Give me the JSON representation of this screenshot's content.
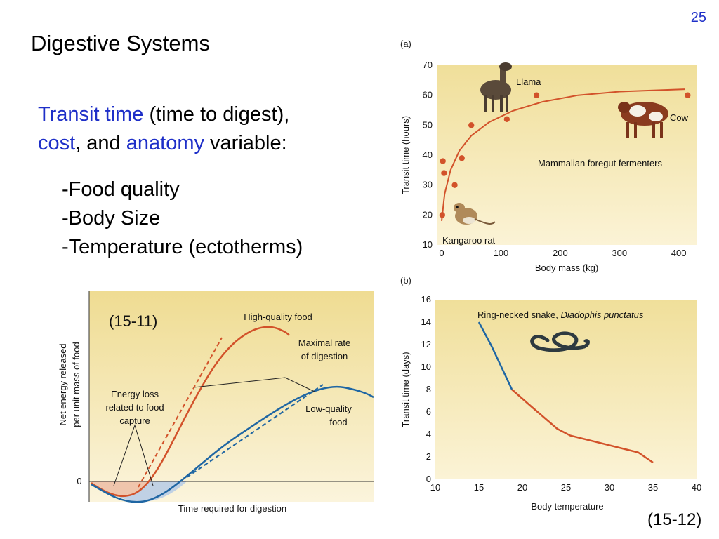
{
  "slide_number": "25",
  "title": "Digestive Systems",
  "intro": {
    "transit_time": "Transit time",
    "paren": " (time to digest),",
    "cost": "cost",
    "and": ", and ",
    "anatomy": "anatomy",
    "variable": " variable:"
  },
  "bullets": [
    "-Food quality",
    "-Body Size",
    "-Temperature (ectotherms)"
  ],
  "fig_ref_left": "(15-11)",
  "fig_ref_right": "(15-12)",
  "chart_data": [
    {
      "panel": "(a)",
      "type": "scatter",
      "xlabel": "Body mass (kg)",
      "ylabel": "Transit time (hours)",
      "xlim": [
        0,
        430
      ],
      "ylim": [
        10,
        70
      ],
      "xticks": [
        0,
        100,
        200,
        300,
        400
      ],
      "yticks": [
        10,
        20,
        30,
        40,
        50,
        60,
        70
      ],
      "points": [
        {
          "x": 1,
          "y": 20
        },
        {
          "x": 2,
          "y": 38
        },
        {
          "x": 4,
          "y": 34
        },
        {
          "x": 22,
          "y": 30
        },
        {
          "x": 34,
          "y": 39
        },
        {
          "x": 50,
          "y": 50
        },
        {
          "x": 110,
          "y": 52
        },
        {
          "x": 160,
          "y": 60
        },
        {
          "x": 415,
          "y": 60
        }
      ],
      "fit_curve": [
        [
          0,
          18
        ],
        [
          5,
          27
        ],
        [
          15,
          35
        ],
        [
          30,
          41.5
        ],
        [
          50,
          46.5
        ],
        [
          80,
          51
        ],
        [
          120,
          54.8
        ],
        [
          170,
          57.8
        ],
        [
          230,
          60
        ],
        [
          300,
          61.2
        ],
        [
          410,
          62
        ]
      ],
      "annotations": [
        "Llama",
        "Cow",
        "Mammalian foregut fermenters",
        "Kangaroo rat"
      ],
      "colors": {
        "background": "#f3e4a6",
        "data": "#d2522a"
      }
    },
    {
      "panel": "(b)",
      "type": "line",
      "xlabel": "Body temperature",
      "ylabel": "Transit time (days)",
      "xlim": [
        10,
        40
      ],
      "ylim": [
        0,
        16
      ],
      "xticks": [
        10,
        15,
        20,
        25,
        30,
        35,
        40
      ],
      "yticks": [
        0,
        2,
        4,
        6,
        8,
        10,
        12,
        14,
        16
      ],
      "series": [
        {
          "values": [
            [
              15,
              14
            ],
            [
              16.5,
              11.8
            ],
            [
              18.8,
              8
            ]
          ],
          "color": "#1f66a3"
        },
        {
          "values": [
            [
              18.8,
              8
            ],
            [
              21,
              6.5
            ],
            [
              24,
              4.5
            ],
            [
              25.5,
              3.9
            ],
            [
              33.3,
              2.4
            ],
            [
              35,
              1.5
            ]
          ],
          "color": "#d2522a"
        }
      ],
      "annotation": {
        "text": "Ring-necked snake, ",
        "species": "Diadophis punctatus"
      },
      "colors": {
        "background": "#f3e4a6"
      }
    },
    {
      "panel": "(15-11)",
      "type": "line",
      "xlabel": "Time required for digestion",
      "ylabel": "Net energy released per unit mass of food",
      "y_zero_label": "0",
      "series": [
        {
          "name": "High-quality food",
          "color": "#d2522a"
        },
        {
          "name": "Low-quality food",
          "color": "#1f66a3"
        }
      ],
      "annotations": [
        "High-quality food",
        "Maximal rate of digestion",
        "Energy loss related to food capture",
        "Low-quality food"
      ],
      "ylabel_lines": [
        "Net energy released",
        "per unit mass of food"
      ],
      "max_rate_lines": [
        "Maximal rate",
        "of digestion"
      ],
      "energy_loss_lines": [
        "Energy loss",
        "related to food",
        "capture"
      ],
      "low_quality_lines": [
        "Low-quality",
        "food"
      ]
    }
  ]
}
